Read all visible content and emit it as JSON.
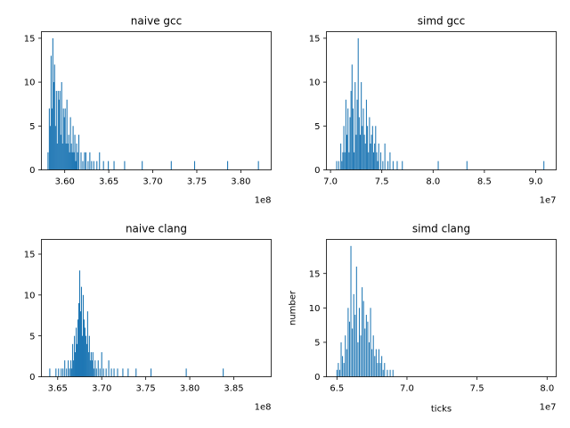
{
  "chart_data": [
    {
      "type": "histogram",
      "title": "naive gcc",
      "xlabel": "",
      "ylabel": "",
      "x_offset_label": "1e8",
      "xlim": [
        3.5735,
        3.8345
      ],
      "ylim": [
        0,
        15.75
      ],
      "xticks": [
        3.6,
        3.65,
        3.7,
        3.75,
        3.8
      ],
      "xtick_labels": [
        "3.60",
        "3.65",
        "3.70",
        "3.75",
        "3.80"
      ],
      "yticks": [
        0,
        5,
        10,
        15
      ],
      "bar_color": "#1f77b4",
      "bin_width": 0.0011,
      "x": [
        3.581,
        3.5825,
        3.5835,
        3.5845,
        3.5855,
        3.5865,
        3.5875,
        3.5885,
        3.5895,
        3.5905,
        3.5915,
        3.5925,
        3.5935,
        3.5945,
        3.5955,
        3.5965,
        3.5975,
        3.5985,
        3.5995,
        3.6005,
        3.6015,
        3.6025,
        3.6035,
        3.6045,
        3.6055,
        3.6065,
        3.6075,
        3.6085,
        3.6095,
        3.6105,
        3.6115,
        3.6125,
        3.6135,
        3.6145,
        3.616,
        3.6185,
        3.6205,
        3.6225,
        3.624,
        3.6265,
        3.6285,
        3.6305,
        3.633,
        3.6365,
        3.6395,
        3.644,
        3.6495,
        3.656,
        3.668,
        3.688,
        3.721,
        3.7475,
        3.785,
        3.82
      ],
      "y": [
        2,
        7,
        5,
        13,
        7,
        15,
        10,
        12,
        5,
        9,
        3,
        9,
        8,
        9,
        4,
        10,
        3,
        7,
        6,
        7,
        3,
        8,
        3,
        4,
        2,
        6,
        3,
        2,
        5,
        2,
        4,
        1,
        3,
        2,
        4,
        2,
        1,
        2,
        2,
        1,
        2,
        1,
        1,
        1,
        2,
        1,
        1,
        1,
        1,
        1,
        1,
        1,
        1,
        1
      ]
    },
    {
      "type": "histogram",
      "title": "simd gcc",
      "xlabel": "",
      "ylabel": "",
      "x_offset_label": "1e7",
      "xlim": [
        6.96,
        9.2
      ],
      "ylim": [
        0,
        15.75
      ],
      "xticks": [
        7.0,
        7.5,
        8.0,
        8.5,
        9.0
      ],
      "xtick_labels": [
        "7.0",
        "7.5",
        "8.0",
        "8.5",
        "9.0"
      ],
      "yticks": [
        0,
        5,
        10,
        15
      ],
      "bar_color": "#1f77b4",
      "bin_width": 0.009,
      "x": [
        7.06,
        7.08,
        7.1,
        7.11,
        7.12,
        7.13,
        7.14,
        7.15,
        7.16,
        7.17,
        7.18,
        7.19,
        7.2,
        7.21,
        7.22,
        7.23,
        7.24,
        7.25,
        7.26,
        7.27,
        7.28,
        7.29,
        7.3,
        7.31,
        7.32,
        7.33,
        7.34,
        7.35,
        7.36,
        7.37,
        7.38,
        7.39,
        7.4,
        7.41,
        7.42,
        7.43,
        7.44,
        7.45,
        7.46,
        7.47,
        7.49,
        7.51,
        7.53,
        7.56,
        7.58,
        7.61,
        7.65,
        7.7,
        8.05,
        8.33,
        9.08
      ],
      "y": [
        1,
        1,
        3,
        1,
        2,
        5,
        2,
        8,
        4,
        7,
        2,
        6,
        9,
        12,
        7,
        2,
        10,
        4,
        8,
        15,
        6,
        4,
        10,
        5,
        7,
        4,
        3,
        8,
        5,
        2,
        6,
        3,
        4,
        5,
        2,
        3,
        5,
        2,
        1,
        3,
        2,
        1,
        3,
        1,
        2,
        1,
        1,
        1,
        1,
        1,
        1
      ]
    },
    {
      "type": "histogram",
      "title": "naive clang",
      "xlabel": "",
      "ylabel": "",
      "x_offset_label": "1e8",
      "xlim": [
        3.6315,
        3.8925
      ],
      "ylim": [
        0,
        16.8
      ],
      "xticks": [
        3.65,
        3.7,
        3.75,
        3.8,
        3.85
      ],
      "xtick_labels": [
        "3.65",
        "3.70",
        "3.75",
        "3.80",
        "3.85"
      ],
      "yticks": [
        0,
        5,
        10,
        15
      ],
      "bar_color": "#1f77b4",
      "bin_width": 0.0011,
      "x": [
        3.641,
        3.648,
        3.651,
        3.654,
        3.656,
        3.658,
        3.66,
        3.662,
        3.6635,
        3.665,
        3.666,
        3.667,
        3.668,
        3.669,
        3.67,
        3.671,
        3.672,
        3.673,
        3.674,
        3.675,
        3.676,
        3.677,
        3.678,
        3.679,
        3.68,
        3.681,
        3.682,
        3.683,
        3.684,
        3.685,
        3.686,
        3.687,
        3.688,
        3.689,
        3.69,
        3.691,
        3.6925,
        3.694,
        3.696,
        3.698,
        3.7,
        3.702,
        3.705,
        3.708,
        3.711,
        3.714,
        3.718,
        3.724,
        3.73,
        3.739,
        3.756,
        3.796,
        3.838
      ],
      "y": [
        1,
        1,
        1,
        1,
        1,
        2,
        1,
        2,
        1,
        2,
        1,
        4,
        2,
        5,
        3,
        6,
        4,
        7,
        9,
        13,
        8,
        11,
        5,
        10,
        7,
        6,
        5,
        4,
        8,
        3,
        5,
        2,
        3,
        2,
        3,
        1,
        2,
        1,
        2,
        1,
        3,
        1,
        1,
        2,
        1,
        1,
        1,
        1,
        1,
        1,
        1,
        1,
        1
      ]
    },
    {
      "type": "histogram",
      "title": "simd clang",
      "xlabel": "ticks",
      "ylabel": "number",
      "x_offset_label": "1e7",
      "xlim": [
        6.425,
        8.065
      ],
      "ylim": [
        0,
        19.95
      ],
      "xticks": [
        6.5,
        7.0,
        7.5,
        8.0
      ],
      "xtick_labels": [
        "6.5",
        "7.0",
        "7.5",
        "8.0"
      ],
      "yticks": [
        0,
        5,
        10,
        15
      ],
      "bar_color": "#1f77b4",
      "bin_width": 0.0066,
      "x": [
        6.5,
        6.51,
        6.52,
        6.53,
        6.54,
        6.55,
        6.56,
        6.57,
        6.58,
        6.59,
        6.6,
        6.61,
        6.62,
        6.63,
        6.64,
        6.65,
        6.66,
        6.67,
        6.68,
        6.69,
        6.7,
        6.71,
        6.72,
        6.73,
        6.74,
        6.75,
        6.76,
        6.77,
        6.78,
        6.79,
        6.8,
        6.81,
        6.82,
        6.83,
        6.84,
        6.86,
        6.88,
        6.9
      ],
      "y": [
        1,
        2,
        1,
        5,
        3,
        2,
        6,
        4,
        10,
        8,
        19,
        7,
        12,
        9,
        16,
        5,
        10,
        6,
        13,
        11,
        7,
        9,
        8,
        5,
        10,
        4,
        6,
        3,
        4,
        2,
        4,
        2,
        3,
        1,
        2,
        1,
        1,
        1
      ]
    }
  ]
}
